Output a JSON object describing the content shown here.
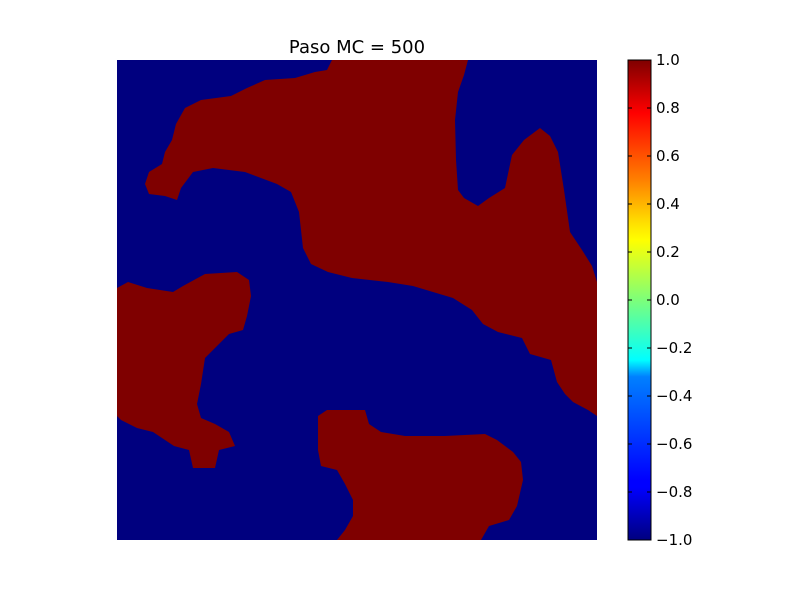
{
  "chart_data": {
    "type": "heatmap",
    "title": "Paso MC = 500",
    "xlabel": "",
    "ylabel": "",
    "axes_visible": false,
    "colormap": "jet",
    "value_range": [
      -1.0,
      1.0
    ],
    "values_present": [
      -1,
      1
    ],
    "colors": {
      "minus_one": "#00007f",
      "plus_one": "#7f0000"
    },
    "colorbar": {
      "ticks": [
        1.0,
        0.8,
        0.6,
        0.4,
        0.2,
        0.0,
        -0.2,
        -0.4,
        -0.6,
        -0.8,
        -1.0
      ],
      "tick_labels": [
        "1.0",
        "0.8",
        "0.6",
        "0.4",
        "0.2",
        "0.0",
        "−0.2",
        "−0.4",
        "−0.6",
        "−0.8",
        "−1.0"
      ]
    }
  }
}
